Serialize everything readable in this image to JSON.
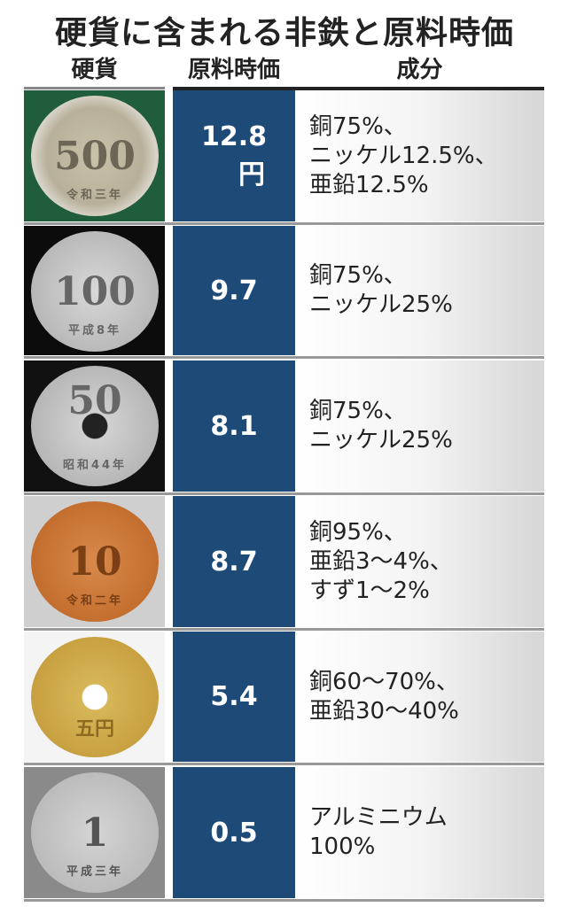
{
  "title": "硬貨に含まれる非鉄と原料時価",
  "headers": {
    "coin": "硬貨",
    "price": "原料時価",
    "composition": "成分"
  },
  "colors": {
    "price_bg": "#1e4a78"
  },
  "rows": [
    {
      "coin": "500",
      "coin_era": "令和三年",
      "price": "12.8",
      "unit": "円",
      "composition": [
        "銅75%、",
        "ニッケル12.5%、",
        "亜鉛12.5%"
      ]
    },
    {
      "coin": "100",
      "coin_era": "平成8年",
      "price": "9.7",
      "composition": [
        "銅75%、",
        "ニッケル25%"
      ]
    },
    {
      "coin": "50",
      "coin_era": "昭和44年",
      "price": "8.1",
      "composition": [
        "銅75%、",
        "ニッケル25%"
      ]
    },
    {
      "coin": "10",
      "coin_era": "令和二年",
      "price": "8.7",
      "composition": [
        "銅95%、",
        "亜鉛3～4%、",
        "すず1～2%"
      ]
    },
    {
      "coin": "五円",
      "price": "5.4",
      "composition": [
        "銅60～70%、",
        "亜鉛30～40%"
      ]
    },
    {
      "coin": "1",
      "coin_era": "平成三年",
      "price": "0.5",
      "composition": [
        "アルミニウム",
        "100%"
      ]
    }
  ]
}
